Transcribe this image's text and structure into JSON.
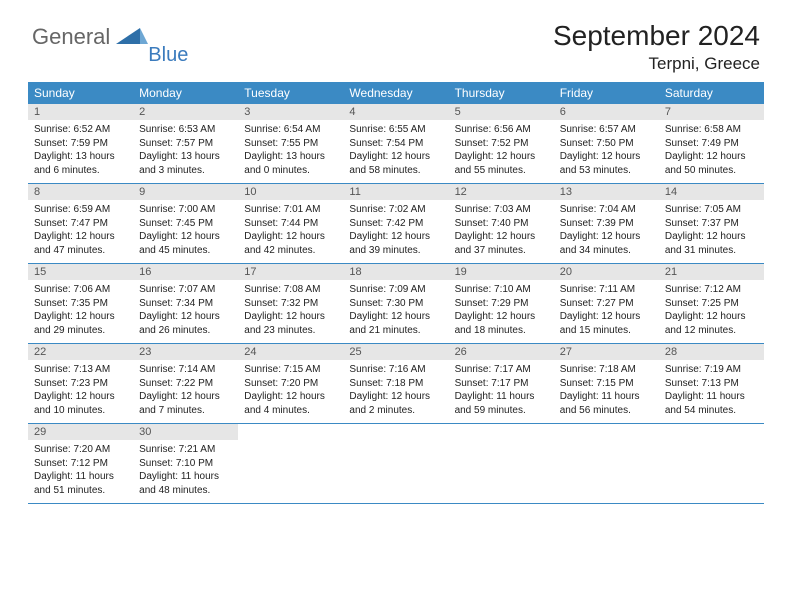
{
  "colors": {
    "header_bg": "#3b8ac4",
    "header_text": "#ffffff",
    "daynum_bg": "#e6e6e6",
    "daynum_text": "#555555",
    "body_text": "#222222",
    "week_border": "#3b8ac4",
    "logo_gray": "#666666",
    "logo_blue": "#3b7bbd",
    "background": "#ffffff"
  },
  "fonts": {
    "title_size": 28,
    "location_size": 17,
    "weekday_size": 12,
    "daynum_size": 11,
    "body_size": 10
  },
  "logo": {
    "word1": "General",
    "word2": "Blue"
  },
  "header": {
    "title": "September 2024",
    "location": "Terpni, Greece"
  },
  "weekdays": [
    "Sunday",
    "Monday",
    "Tuesday",
    "Wednesday",
    "Thursday",
    "Friday",
    "Saturday"
  ],
  "weeks": [
    [
      {
        "n": "1",
        "sr": "Sunrise: 6:52 AM",
        "ss": "Sunset: 7:59 PM",
        "dl": "Daylight: 13 hours and 6 minutes."
      },
      {
        "n": "2",
        "sr": "Sunrise: 6:53 AM",
        "ss": "Sunset: 7:57 PM",
        "dl": "Daylight: 13 hours and 3 minutes."
      },
      {
        "n": "3",
        "sr": "Sunrise: 6:54 AM",
        "ss": "Sunset: 7:55 PM",
        "dl": "Daylight: 13 hours and 0 minutes."
      },
      {
        "n": "4",
        "sr": "Sunrise: 6:55 AM",
        "ss": "Sunset: 7:54 PM",
        "dl": "Daylight: 12 hours and 58 minutes."
      },
      {
        "n": "5",
        "sr": "Sunrise: 6:56 AM",
        "ss": "Sunset: 7:52 PM",
        "dl": "Daylight: 12 hours and 55 minutes."
      },
      {
        "n": "6",
        "sr": "Sunrise: 6:57 AM",
        "ss": "Sunset: 7:50 PM",
        "dl": "Daylight: 12 hours and 53 minutes."
      },
      {
        "n": "7",
        "sr": "Sunrise: 6:58 AM",
        "ss": "Sunset: 7:49 PM",
        "dl": "Daylight: 12 hours and 50 minutes."
      }
    ],
    [
      {
        "n": "8",
        "sr": "Sunrise: 6:59 AM",
        "ss": "Sunset: 7:47 PM",
        "dl": "Daylight: 12 hours and 47 minutes."
      },
      {
        "n": "9",
        "sr": "Sunrise: 7:00 AM",
        "ss": "Sunset: 7:45 PM",
        "dl": "Daylight: 12 hours and 45 minutes."
      },
      {
        "n": "10",
        "sr": "Sunrise: 7:01 AM",
        "ss": "Sunset: 7:44 PM",
        "dl": "Daylight: 12 hours and 42 minutes."
      },
      {
        "n": "11",
        "sr": "Sunrise: 7:02 AM",
        "ss": "Sunset: 7:42 PM",
        "dl": "Daylight: 12 hours and 39 minutes."
      },
      {
        "n": "12",
        "sr": "Sunrise: 7:03 AM",
        "ss": "Sunset: 7:40 PM",
        "dl": "Daylight: 12 hours and 37 minutes."
      },
      {
        "n": "13",
        "sr": "Sunrise: 7:04 AM",
        "ss": "Sunset: 7:39 PM",
        "dl": "Daylight: 12 hours and 34 minutes."
      },
      {
        "n": "14",
        "sr": "Sunrise: 7:05 AM",
        "ss": "Sunset: 7:37 PM",
        "dl": "Daylight: 12 hours and 31 minutes."
      }
    ],
    [
      {
        "n": "15",
        "sr": "Sunrise: 7:06 AM",
        "ss": "Sunset: 7:35 PM",
        "dl": "Daylight: 12 hours and 29 minutes."
      },
      {
        "n": "16",
        "sr": "Sunrise: 7:07 AM",
        "ss": "Sunset: 7:34 PM",
        "dl": "Daylight: 12 hours and 26 minutes."
      },
      {
        "n": "17",
        "sr": "Sunrise: 7:08 AM",
        "ss": "Sunset: 7:32 PM",
        "dl": "Daylight: 12 hours and 23 minutes."
      },
      {
        "n": "18",
        "sr": "Sunrise: 7:09 AM",
        "ss": "Sunset: 7:30 PM",
        "dl": "Daylight: 12 hours and 21 minutes."
      },
      {
        "n": "19",
        "sr": "Sunrise: 7:10 AM",
        "ss": "Sunset: 7:29 PM",
        "dl": "Daylight: 12 hours and 18 minutes."
      },
      {
        "n": "20",
        "sr": "Sunrise: 7:11 AM",
        "ss": "Sunset: 7:27 PM",
        "dl": "Daylight: 12 hours and 15 minutes."
      },
      {
        "n": "21",
        "sr": "Sunrise: 7:12 AM",
        "ss": "Sunset: 7:25 PM",
        "dl": "Daylight: 12 hours and 12 minutes."
      }
    ],
    [
      {
        "n": "22",
        "sr": "Sunrise: 7:13 AM",
        "ss": "Sunset: 7:23 PM",
        "dl": "Daylight: 12 hours and 10 minutes."
      },
      {
        "n": "23",
        "sr": "Sunrise: 7:14 AM",
        "ss": "Sunset: 7:22 PM",
        "dl": "Daylight: 12 hours and 7 minutes."
      },
      {
        "n": "24",
        "sr": "Sunrise: 7:15 AM",
        "ss": "Sunset: 7:20 PM",
        "dl": "Daylight: 12 hours and 4 minutes."
      },
      {
        "n": "25",
        "sr": "Sunrise: 7:16 AM",
        "ss": "Sunset: 7:18 PM",
        "dl": "Daylight: 12 hours and 2 minutes."
      },
      {
        "n": "26",
        "sr": "Sunrise: 7:17 AM",
        "ss": "Sunset: 7:17 PM",
        "dl": "Daylight: 11 hours and 59 minutes."
      },
      {
        "n": "27",
        "sr": "Sunrise: 7:18 AM",
        "ss": "Sunset: 7:15 PM",
        "dl": "Daylight: 11 hours and 56 minutes."
      },
      {
        "n": "28",
        "sr": "Sunrise: 7:19 AM",
        "ss": "Sunset: 7:13 PM",
        "dl": "Daylight: 11 hours and 54 minutes."
      }
    ],
    [
      {
        "n": "29",
        "sr": "Sunrise: 7:20 AM",
        "ss": "Sunset: 7:12 PM",
        "dl": "Daylight: 11 hours and 51 minutes."
      },
      {
        "n": "30",
        "sr": "Sunrise: 7:21 AM",
        "ss": "Sunset: 7:10 PM",
        "dl": "Daylight: 11 hours and 48 minutes."
      },
      {
        "empty": true
      },
      {
        "empty": true
      },
      {
        "empty": true
      },
      {
        "empty": true
      },
      {
        "empty": true
      }
    ]
  ]
}
